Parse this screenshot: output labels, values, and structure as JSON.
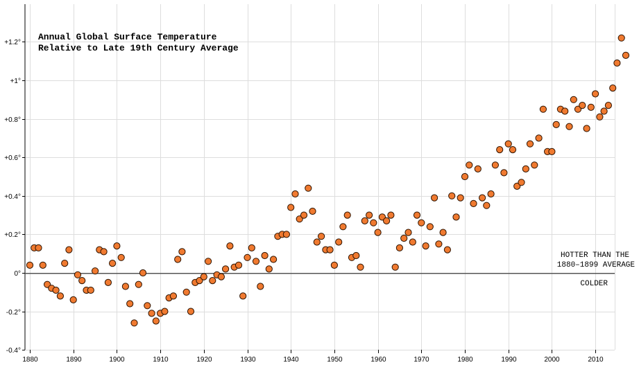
{
  "chart_data": {
    "type": "scatter",
    "title": [
      "Annual Global Surface Temperature",
      "Relative to Late 19th Century Average"
    ],
    "xlabel": "",
    "ylabel": "",
    "xlim": [
      1879,
      2017
    ],
    "ylim": [
      -0.4,
      1.3
    ],
    "x_ticks": [
      1880,
      1890,
      1900,
      1910,
      1920,
      1930,
      1940,
      1950,
      1960,
      1970,
      1980,
      1990,
      2000,
      2010
    ],
    "y_ticks": [
      {
        "value": -0.4,
        "label": "-0.4°"
      },
      {
        "value": -0.2,
        "label": "-0.2°"
      },
      {
        "value": 0,
        "label": "0°"
      },
      {
        "value": 0.2,
        "label": "+0.2°"
      },
      {
        "value": 0.4,
        "label": "+0.4°"
      },
      {
        "value": 0.6,
        "label": "+0.6°"
      },
      {
        "value": 0.8,
        "label": "+0.8°"
      },
      {
        "value": 1.0,
        "label": "+1°"
      },
      {
        "value": 1.2,
        "label": "+1.2°"
      }
    ],
    "grid": true,
    "point_color": "#f07a30",
    "annotations": {
      "hotter": [
        "HOTTER THAN THE",
        "1880–1899 AVERAGE"
      ],
      "colder": "COLDER"
    },
    "x": [
      1880,
      1881,
      1882,
      1883,
      1884,
      1885,
      1886,
      1887,
      1888,
      1889,
      1890,
      1891,
      1892,
      1893,
      1894,
      1895,
      1896,
      1897,
      1898,
      1899,
      1900,
      1901,
      1902,
      1903,
      1904,
      1905,
      1906,
      1907,
      1908,
      1909,
      1910,
      1911,
      1912,
      1913,
      1914,
      1915,
      1916,
      1917,
      1918,
      1919,
      1920,
      1921,
      1922,
      1923,
      1924,
      1925,
      1926,
      1927,
      1928,
      1929,
      1930,
      1931,
      1932,
      1933,
      1934,
      1935,
      1936,
      1937,
      1938,
      1939,
      1940,
      1941,
      1942,
      1943,
      1944,
      1945,
      1946,
      1947,
      1948,
      1949,
      1950,
      1951,
      1952,
      1953,
      1954,
      1955,
      1956,
      1957,
      1958,
      1959,
      1960,
      1961,
      1962,
      1963,
      1964,
      1965,
      1966,
      1967,
      1968,
      1969,
      1970,
      1971,
      1972,
      1973,
      1974,
      1975,
      1976,
      1977,
      1978,
      1979,
      1980,
      1981,
      1982,
      1983,
      1984,
      1985,
      1986,
      1987,
      1988,
      1989,
      1990,
      1991,
      1992,
      1993,
      1994,
      1995,
      1996,
      1997,
      1998,
      1999,
      2000,
      2001,
      2002,
      2003,
      2004,
      2005,
      2006,
      2007,
      2008,
      2009,
      2010,
      2011,
      2012,
      2013,
      2014,
      2015,
      2016,
      2017
    ],
    "y": [
      0.04,
      0.13,
      0.13,
      0.04,
      -0.06,
      -0.08,
      -0.09,
      -0.12,
      0.05,
      0.12,
      -0.14,
      -0.01,
      -0.04,
      -0.09,
      -0.09,
      0.01,
      0.12,
      0.11,
      -0.05,
      0.05,
      0.14,
      0.08,
      -0.07,
      -0.16,
      -0.26,
      -0.06,
      0.0,
      -0.17,
      -0.21,
      -0.25,
      -0.21,
      -0.2,
      -0.13,
      -0.12,
      0.07,
      0.11,
      -0.1,
      -0.2,
      -0.05,
      -0.04,
      -0.02,
      0.06,
      -0.04,
      -0.01,
      -0.02,
      0.02,
      0.14,
      0.03,
      0.04,
      -0.12,
      0.08,
      0.13,
      0.06,
      -0.07,
      0.09,
      0.02,
      0.07,
      0.19,
      0.2,
      0.2,
      0.34,
      0.41,
      0.28,
      0.3,
      0.44,
      0.32,
      0.16,
      0.19,
      0.12,
      0.12,
      0.04,
      0.16,
      0.24,
      0.3,
      0.08,
      0.09,
      0.03,
      0.27,
      0.3,
      0.26,
      0.21,
      0.29,
      0.27,
      0.3,
      0.03,
      0.13,
      0.18,
      0.21,
      0.16,
      0.3,
      0.26,
      0.14,
      0.24,
      0.39,
      0.15,
      0.21,
      0.12,
      0.4,
      0.29,
      0.39,
      0.5,
      0.56,
      0.36,
      0.54,
      0.39,
      0.35,
      0.41,
      0.56,
      0.64,
      0.52,
      0.67,
      0.64,
      0.45,
      0.47,
      0.54,
      0.67,
      0.56,
      0.7,
      0.85,
      0.63,
      0.63,
      0.77,
      0.85,
      0.84,
      0.76,
      0.9,
      0.85,
      0.87,
      0.75,
      0.86,
      0.93,
      0.81,
      0.84,
      0.87,
      0.96,
      1.09,
      1.22,
      1.13
    ]
  }
}
